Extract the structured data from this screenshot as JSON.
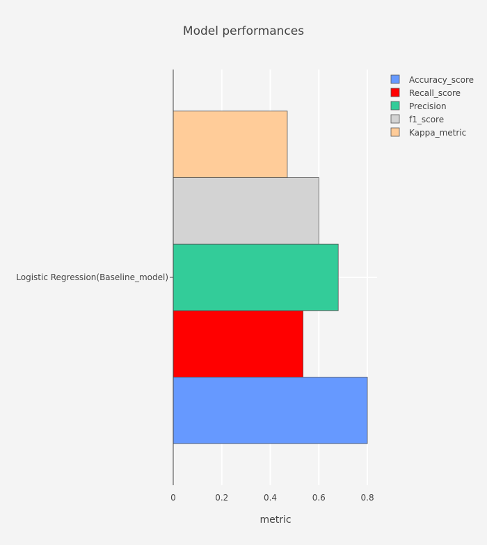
{
  "chart_data": {
    "type": "bar",
    "orientation": "horizontal",
    "title": "Model performances",
    "xlabel": "metric",
    "ylabel": "",
    "categories": [
      "Logistic Regression(Baseline_model)"
    ],
    "xlim": [
      0,
      0.84
    ],
    "xticks": [
      0,
      0.2,
      0.4,
      0.6,
      0.8
    ],
    "xtick_labels": [
      "0",
      "0.2",
      "0.4",
      "0.6",
      "0.8"
    ],
    "grid": "vertical",
    "legend_position": "top-right",
    "series": [
      {
        "name": "Accuracy_score",
        "values": [
          0.8
        ],
        "color": "#6699ff"
      },
      {
        "name": "Recall_score",
        "values": [
          0.535
        ],
        "color": "#ff0000"
      },
      {
        "name": "Precision",
        "values": [
          0.68
        ],
        "color": "#33cc99"
      },
      {
        "name": "f1_score",
        "values": [
          0.6
        ],
        "color": "#d3d3d3"
      },
      {
        "name": "Kappa_metric",
        "values": [
          0.47
        ],
        "color": "#ffcc99"
      }
    ]
  }
}
